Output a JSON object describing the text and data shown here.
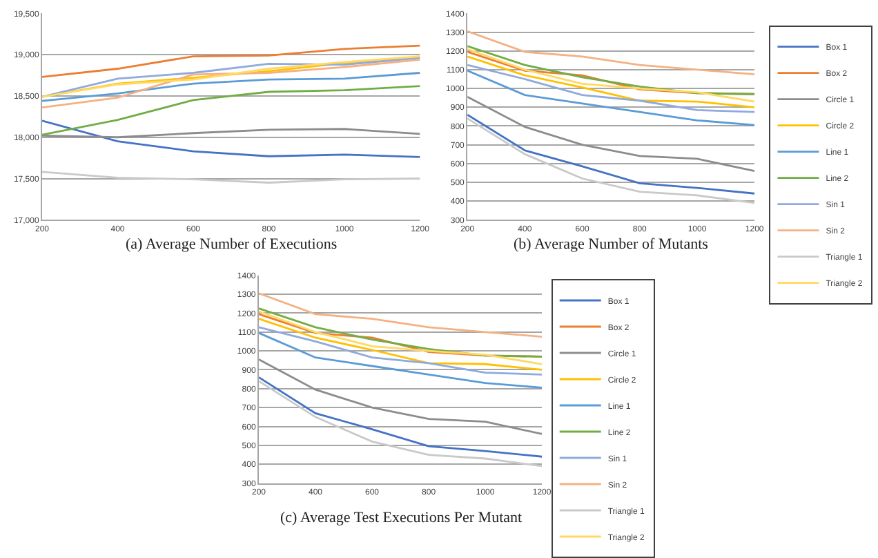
{
  "chart_data": [
    {
      "type": "line",
      "title": "(a) Average Number of Executions",
      "x": [
        200,
        400,
        600,
        800,
        1000,
        1200
      ],
      "xlim": [
        200,
        1200
      ],
      "xticks": [
        200,
        400,
        600,
        800,
        1000,
        1200
      ],
      "ylim": [
        17000,
        19500
      ],
      "yticks": [
        {
          "value": 17000,
          "label": "17,000"
        },
        {
          "value": 17500,
          "label": "17,500"
        },
        {
          "value": 18000,
          "label": "18,000"
        },
        {
          "value": 18500,
          "label": "18,500"
        },
        {
          "value": 19000,
          "label": "19,000"
        },
        {
          "value": 19500,
          "label": "19,500"
        }
      ],
      "grid": "y",
      "legend": false,
      "marker": "none",
      "series": [
        {
          "color": "#4472c4",
          "values": [
            18200,
            17950,
            17830,
            17770,
            17790,
            17760
          ]
        },
        {
          "color": "#ed7d31",
          "values": [
            18730,
            18830,
            18980,
            18990,
            19070,
            19110
          ]
        },
        {
          "color": "#8c8c8c",
          "values": [
            18020,
            18000,
            18050,
            18090,
            18100,
            18040
          ]
        },
        {
          "color": "#ffc000",
          "values": [
            18490,
            18650,
            18720,
            18800,
            18900,
            18970
          ]
        },
        {
          "color": "#5b9bd5",
          "values": [
            18440,
            18530,
            18650,
            18700,
            18710,
            18780
          ]
        },
        {
          "color": "#70ad47",
          "values": [
            18030,
            18210,
            18450,
            18550,
            18570,
            18620
          ]
        },
        {
          "color": "#8faadc",
          "values": [
            18490,
            18710,
            18780,
            18890,
            18880,
            18960
          ]
        },
        {
          "color": "#f4b183",
          "values": [
            18360,
            18480,
            18760,
            18780,
            18850,
            18940
          ]
        },
        {
          "color": "#c9c9c9",
          "values": [
            17580,
            17510,
            17490,
            17450,
            17490,
            17500
          ]
        },
        {
          "color": "#ffd966",
          "values": [
            18490,
            18640,
            18700,
            18830,
            18910,
            18980
          ]
        }
      ]
    },
    {
      "type": "line",
      "title": "(b) Average Number of Mutants",
      "x": [
        200,
        400,
        600,
        800,
        1000,
        1200
      ],
      "xlim": [
        200,
        1200
      ],
      "xticks": [
        200,
        400,
        600,
        800,
        1000,
        1200
      ],
      "ylim": [
        300,
        1400
      ],
      "yticks": [
        300,
        400,
        500,
        600,
        700,
        800,
        900,
        1000,
        1100,
        1200,
        1300,
        1400
      ],
      "grid": "y",
      "legend": "right",
      "marker": "none",
      "series": [
        {
          "name": "Box 1",
          "color": "#4472c4",
          "values": [
            860,
            670,
            585,
            495,
            470,
            440
          ]
        },
        {
          "name": "Box 2",
          "color": "#ed7d31",
          "values": [
            1195,
            1095,
            1070,
            995,
            975,
            970
          ]
        },
        {
          "name": "Circle 1",
          "color": "#8c8c8c",
          "values": [
            955,
            795,
            700,
            640,
            625,
            560
          ]
        },
        {
          "name": "Circle 2",
          "color": "#ffc000",
          "values": [
            1170,
            1070,
            1005,
            935,
            930,
            900
          ]
        },
        {
          "name": "Line 1",
          "color": "#5b9bd5",
          "values": [
            1095,
            965,
            920,
            875,
            830,
            805
          ]
        },
        {
          "name": "Line 2",
          "color": "#70ad47",
          "values": [
            1225,
            1125,
            1060,
            1010,
            975,
            970
          ]
        },
        {
          "name": "Sin 1",
          "color": "#8faadc",
          "values": [
            1125,
            1050,
            965,
            935,
            885,
            875
          ]
        },
        {
          "name": "Sin 2",
          "color": "#f4b183",
          "values": [
            1305,
            1195,
            1170,
            1125,
            1100,
            1075
          ]
        },
        {
          "name": "Triangle 1",
          "color": "#c9c9c9",
          "values": [
            840,
            650,
            520,
            450,
            430,
            390
          ]
        },
        {
          "name": "Triangle 2",
          "color": "#ffd966",
          "values": [
            1210,
            1100,
            1025,
            1000,
            980,
            930
          ]
        }
      ]
    },
    {
      "type": "line",
      "title": "(c) Average Test Executions Per Mutant",
      "x": [
        200,
        400,
        600,
        800,
        1000,
        1200
      ],
      "xlim": [
        200,
        1200
      ],
      "xticks": [
        200,
        400,
        600,
        800,
        1000,
        1200
      ],
      "ylim": [
        300,
        1400
      ],
      "yticks": [
        300,
        400,
        500,
        600,
        700,
        800,
        900,
        1000,
        1100,
        1200,
        1300,
        1400
      ],
      "grid": "y",
      "legend": "right",
      "marker": "none",
      "series": [
        {
          "name": "Box 1",
          "color": "#4472c4",
          "values": [
            860,
            670,
            585,
            495,
            470,
            440
          ]
        },
        {
          "name": "Box 2",
          "color": "#ed7d31",
          "values": [
            1195,
            1095,
            1070,
            995,
            975,
            970
          ]
        },
        {
          "name": "Circle 1",
          "color": "#8c8c8c",
          "values": [
            955,
            795,
            700,
            640,
            625,
            560
          ]
        },
        {
          "name": "Circle 2",
          "color": "#ffc000",
          "values": [
            1170,
            1070,
            1005,
            935,
            930,
            900
          ]
        },
        {
          "name": "Line 1",
          "color": "#5b9bd5",
          "values": [
            1095,
            965,
            920,
            875,
            830,
            805
          ]
        },
        {
          "name": "Line 2",
          "color": "#70ad47",
          "values": [
            1225,
            1125,
            1060,
            1010,
            975,
            970
          ]
        },
        {
          "name": "Sin 1",
          "color": "#8faadc",
          "values": [
            1125,
            1050,
            965,
            935,
            885,
            875
          ]
        },
        {
          "name": "Sin 2",
          "color": "#f4b183",
          "values": [
            1305,
            1195,
            1170,
            1125,
            1100,
            1075
          ]
        },
        {
          "name": "Triangle 1",
          "color": "#c9c9c9",
          "values": [
            840,
            650,
            520,
            450,
            430,
            390
          ]
        },
        {
          "name": "Triangle 2",
          "color": "#ffd966",
          "values": [
            1210,
            1100,
            1025,
            1000,
            980,
            930
          ]
        }
      ]
    }
  ]
}
